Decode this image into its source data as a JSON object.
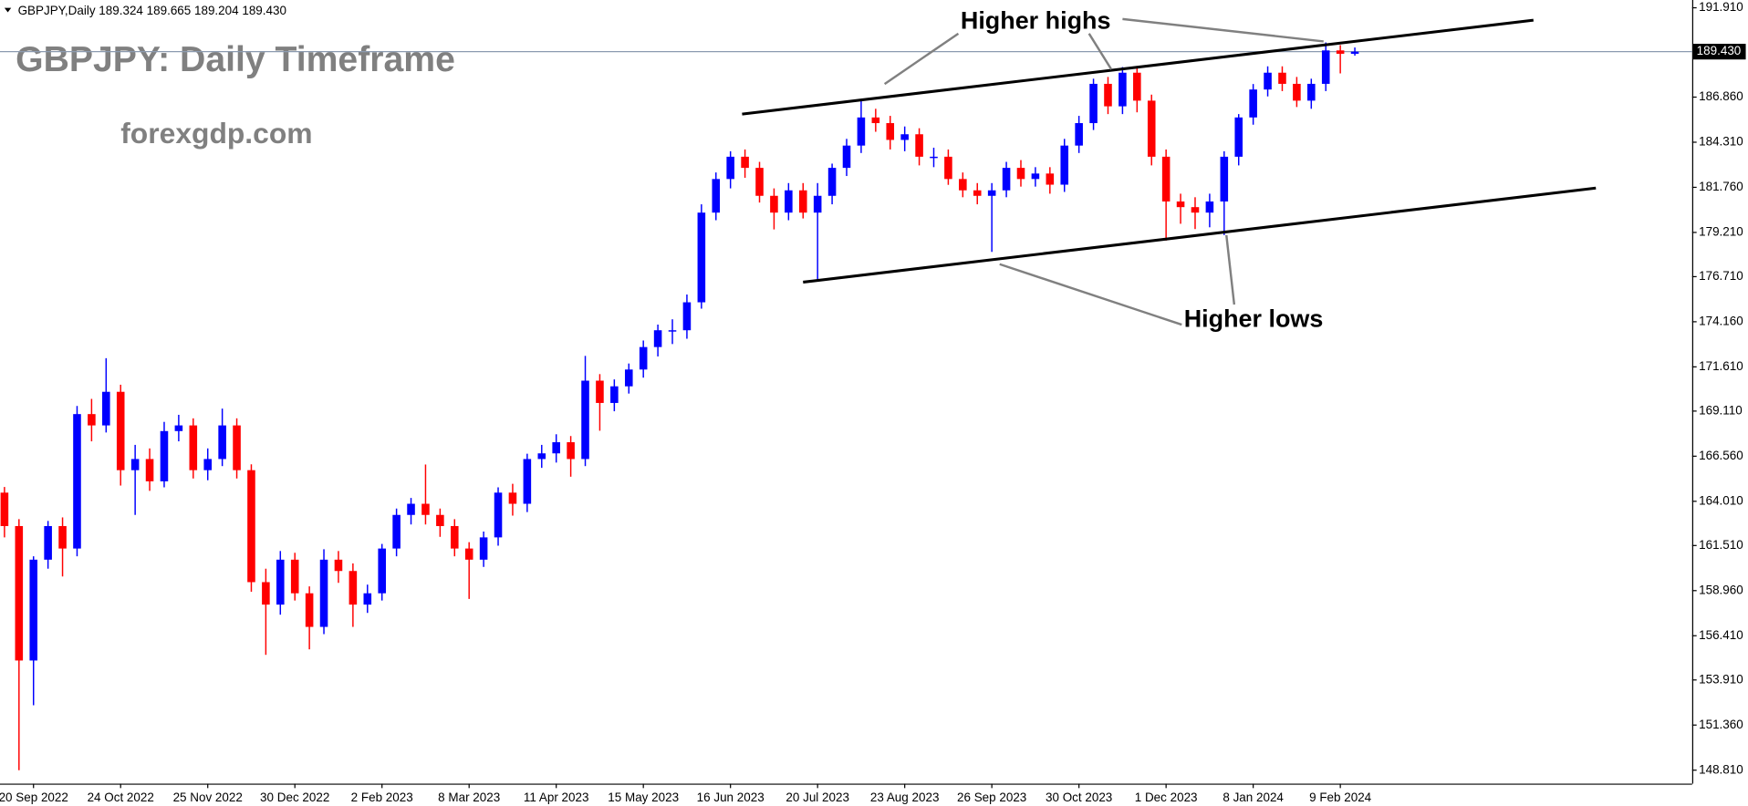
{
  "chart_data": {
    "type": "candlestick",
    "symbol_info": "GBPJPY,Daily  189.324 189.665 189.204 189.430",
    "title": "GBPJPY: Daily Timeframe",
    "subtitle": "forexgdp.com",
    "annotations": [
      "Higher highs",
      "Higher lows"
    ],
    "up_color": "#0000ff",
    "down_color": "#ff0000",
    "categories": [
      null,
      null,
      "20 Sep 2022",
      null,
      null,
      null,
      null,
      null,
      "24 Oct 2022",
      null,
      null,
      null,
      null,
      null,
      "25 Nov 2022",
      null,
      null,
      null,
      null,
      null,
      "30 Dec 2022",
      null,
      null,
      null,
      null,
      null,
      "2 Feb 2023",
      null,
      null,
      null,
      null,
      null,
      "8 Mar 2023",
      null,
      null,
      null,
      null,
      null,
      "11 Apr 2023",
      null,
      null,
      null,
      null,
      null,
      "15 May 2023",
      null,
      null,
      null,
      null,
      null,
      "16 Jun 2023",
      null,
      null,
      null,
      null,
      null,
      "20 Jul 2023",
      null,
      null,
      null,
      null,
      null,
      "23 Aug 2023",
      null,
      null,
      null,
      null,
      null,
      "26 Sep 2023",
      null,
      null,
      null,
      null,
      null,
      "30 Oct 2023",
      null,
      null,
      null,
      null,
      null,
      "1 Dec 2023",
      null,
      null,
      null,
      null,
      null,
      "8 Jan 2024",
      null,
      null,
      null,
      null,
      null,
      "9 Feb 2024",
      null
    ],
    "open": [
      164.5,
      162.61,
      155.01,
      160.71,
      162.61,
      161.34,
      168.94,
      168.3,
      170.2,
      165.77,
      166.4,
      165.14,
      167.98,
      168.3,
      165.77,
      166.4,
      168.3,
      165.77,
      159.44,
      158.17,
      160.71,
      158.81,
      156.91,
      160.71,
      160.07,
      158.17,
      158.81,
      161.34,
      163.24,
      163.87,
      163.24,
      162.61,
      161.34,
      160.71,
      161.97,
      164.5,
      163.87,
      166.4,
      166.72,
      167.35,
      166.4,
      170.83,
      169.57,
      170.51,
      171.46,
      172.73,
      173.68,
      173.68,
      175.26,
      180.33,
      182.23,
      183.49,
      182.86,
      181.28,
      180.33,
      181.59,
      180.33,
      181.28,
      182.86,
      184.12,
      185.71,
      185.39,
      184.44,
      184.76,
      183.49,
      183.49,
      182.23,
      181.59,
      181.28,
      181.59,
      182.86,
      182.23,
      182.54,
      181.91,
      184.12,
      185.39,
      187.61,
      186.34,
      188.24,
      186.66,
      183.49,
      180.96,
      180.64,
      180.33,
      180.96,
      183.49,
      185.71,
      187.29,
      188.24,
      187.61,
      186.66,
      187.61,
      189.5,
      189.31
    ],
    "high": [
      164.82,
      163.0,
      160.9,
      162.9,
      163.1,
      169.4,
      169.8,
      172.1,
      170.6,
      167.2,
      167.0,
      168.5,
      168.9,
      168.7,
      167.0,
      169.25,
      168.7,
      166.1,
      160.2,
      161.2,
      161.1,
      159.2,
      161.3,
      161.2,
      160.5,
      159.3,
      161.6,
      163.6,
      164.2,
      166.09,
      163.6,
      163.0,
      161.7,
      162.3,
      164.8,
      165.0,
      166.7,
      167.2,
      167.8,
      167.7,
      172.23,
      171.2,
      170.9,
      171.8,
      173.1,
      174.0,
      174.3,
      175.7,
      180.8,
      182.6,
      183.8,
      183.9,
      183.2,
      181.7,
      182.0,
      182.0,
      182.0,
      183.1,
      184.5,
      186.66,
      186.2,
      185.8,
      185.2,
      185.1,
      184.0,
      183.9,
      182.6,
      182.0,
      182.0,
      183.2,
      183.3,
      182.9,
      182.9,
      184.5,
      185.8,
      187.9,
      188.0,
      188.56,
      188.6,
      187.0,
      183.9,
      181.4,
      181.2,
      181.4,
      183.8,
      185.9,
      187.6,
      188.6,
      188.6,
      188.0,
      187.9,
      189.95,
      189.8,
      189.665
    ],
    "low": [
      161.97,
      148.81,
      152.48,
      160.2,
      159.76,
      160.9,
      167.4,
      167.9,
      164.9,
      163.24,
      164.6,
      164.8,
      167.4,
      165.3,
      165.2,
      166.0,
      165.3,
      158.9,
      155.33,
      157.6,
      158.4,
      155.64,
      156.5,
      159.4,
      156.91,
      157.7,
      158.4,
      160.9,
      162.7,
      162.7,
      162.0,
      160.9,
      158.49,
      160.3,
      161.5,
      163.2,
      163.4,
      165.9,
      166.2,
      165.4,
      166.0,
      168.0,
      169.1,
      170.1,
      171.0,
      172.2,
      172.9,
      173.2,
      174.9,
      179.9,
      181.7,
      182.3,
      180.9,
      179.38,
      179.9,
      180.0,
      176.53,
      180.8,
      182.4,
      183.7,
      184.9,
      183.9,
      183.8,
      183.0,
      182.9,
      181.9,
      181.2,
      180.8,
      178.11,
      181.2,
      181.8,
      181.8,
      181.4,
      181.5,
      183.7,
      185.0,
      185.9,
      185.9,
      186.0,
      183.0,
      178.75,
      179.7,
      179.4,
      179.5,
      179.06,
      183.0,
      185.3,
      186.9,
      187.2,
      186.3,
      186.2,
      187.2,
      188.2,
      189.204
    ],
    "close": [
      162.61,
      155.01,
      160.71,
      162.61,
      161.34,
      168.94,
      168.3,
      170.2,
      165.77,
      166.4,
      165.14,
      167.98,
      168.3,
      165.77,
      166.4,
      168.3,
      165.77,
      159.44,
      158.17,
      160.71,
      158.81,
      156.91,
      160.71,
      160.07,
      158.17,
      158.81,
      161.34,
      163.24,
      163.87,
      163.24,
      162.61,
      161.34,
      160.71,
      161.97,
      164.5,
      163.87,
      166.4,
      166.72,
      167.35,
      166.4,
      170.83,
      169.57,
      170.51,
      171.46,
      172.73,
      173.68,
      173.68,
      175.26,
      180.33,
      182.23,
      183.49,
      182.86,
      181.28,
      180.33,
      181.59,
      180.33,
      181.28,
      182.86,
      184.12,
      185.71,
      185.39,
      184.44,
      184.76,
      183.49,
      183.49,
      182.23,
      181.59,
      181.28,
      181.59,
      182.86,
      182.23,
      182.54,
      181.91,
      184.12,
      185.39,
      187.61,
      186.34,
      188.24,
      186.66,
      183.49,
      180.96,
      180.64,
      180.33,
      180.96,
      183.49,
      185.71,
      187.29,
      188.24,
      187.61,
      186.66,
      187.61,
      189.5,
      189.31,
      189.43
    ],
    "ylim": [
      148.05,
      192.35
    ],
    "yticks": [
      {
        "value": 191.91,
        "label": "191.910"
      },
      {
        "value": 186.86,
        "label": "186.860"
      },
      {
        "value": 184.31,
        "label": "184.310"
      },
      {
        "value": 181.76,
        "label": "181.760"
      },
      {
        "value": 179.21,
        "label": "179.210"
      },
      {
        "value": 176.71,
        "label": "176.710"
      },
      {
        "value": 174.16,
        "label": "174.160"
      },
      {
        "value": 171.61,
        "label": "171.610"
      },
      {
        "value": 169.11,
        "label": "169.110"
      },
      {
        "value": 166.56,
        "label": "166.560"
      },
      {
        "value": 164.01,
        "label": "164.010"
      },
      {
        "value": 161.51,
        "label": "161.510"
      },
      {
        "value": 158.96,
        "label": "158.960"
      },
      {
        "value": 156.41,
        "label": "156.410"
      },
      {
        "value": 153.91,
        "label": "153.910"
      },
      {
        "value": 151.36,
        "label": "151.360"
      },
      {
        "value": 148.81,
        "label": "148.810"
      }
    ],
    "current_price": {
      "value": 189.43,
      "label": "189.430"
    },
    "channel_lines": [
      {
        "x": [
          50.8,
          105.3
        ],
        "y": [
          185.9,
          191.21
        ]
      },
      {
        "x": [
          55.0,
          109.6
        ],
        "y": [
          176.4,
          181.72
        ]
      }
    ]
  }
}
